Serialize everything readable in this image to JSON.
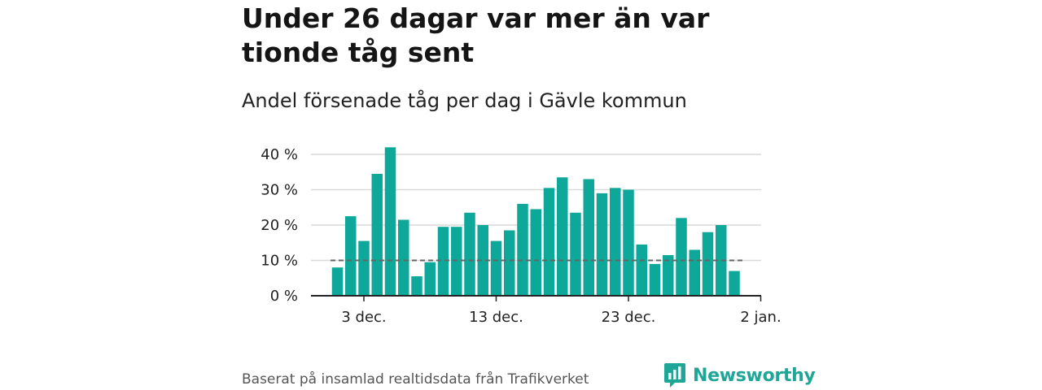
{
  "title": "Under 26 dagar var mer än var tionde tåg sent",
  "subtitle": "Andel försenade tåg per dag i Gävle kommun",
  "source": "Baserat på insamlad realtidsdata från Trafikverket",
  "brand": "Newsworthy",
  "colors": {
    "bar": "#0ea89a",
    "grid": "#d9d9d9",
    "reference": "#666666",
    "axis": "#222222",
    "brand": "#1ea697"
  },
  "chart_data": {
    "type": "bar",
    "x": [
      "2023-12-01",
      "2023-12-02",
      "2023-12-03",
      "2023-12-04",
      "2023-12-05",
      "2023-12-06",
      "2023-12-07",
      "2023-12-08",
      "2023-12-09",
      "2023-12-10",
      "2023-12-11",
      "2023-12-12",
      "2023-12-13",
      "2023-12-14",
      "2023-12-15",
      "2023-12-16",
      "2023-12-17",
      "2023-12-18",
      "2023-12-19",
      "2023-12-20",
      "2023-12-21",
      "2023-12-22",
      "2023-12-23",
      "2023-12-24",
      "2023-12-25",
      "2023-12-26",
      "2023-12-27",
      "2023-12-28",
      "2023-12-29",
      "2023-12-30",
      "2023-12-31"
    ],
    "values": [
      8,
      22.5,
      15.5,
      34.5,
      42,
      21.5,
      5.5,
      9.5,
      19.5,
      19.5,
      23.5,
      20,
      15.5,
      18.5,
      26,
      24.5,
      30.5,
      33.5,
      23.5,
      33,
      29,
      30.5,
      30,
      14.5,
      9,
      11.5,
      22,
      13,
      18,
      20,
      7
    ],
    "reference_line": 10,
    "ylim": [
      0,
      42
    ],
    "yticks": [
      0,
      10,
      20,
      30,
      40
    ],
    "ytick_labels": [
      "0 %",
      "10 %",
      "20 %",
      "30 %",
      "40 %"
    ],
    "xticks": [
      "2023-12-03",
      "2023-12-13",
      "2023-12-23",
      "2024-01-02"
    ],
    "xtick_labels": [
      "3 dec.",
      "13 dec.",
      "23 dec.",
      "2 jan."
    ],
    "grid": true,
    "legend": "none"
  }
}
